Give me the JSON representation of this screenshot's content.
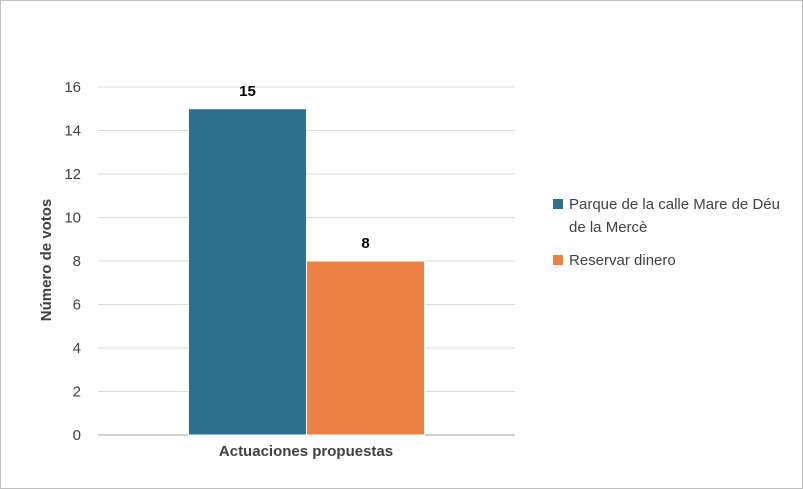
{
  "chart_data": {
    "type": "bar",
    "categories": [
      "Actuaciones propuestas"
    ],
    "series": [
      {
        "name": "Parque de la calle Mare de Déu de la Mercè",
        "values": [
          15
        ],
        "color": "#2e6f8e"
      },
      {
        "name": "Reservar dinero",
        "values": [
          8
        ],
        "color": "#ec8146"
      }
    ],
    "title": "",
    "xlabel": "Actuaciones propuestas",
    "ylabel": "Número de votos",
    "ylim": [
      0,
      16
    ],
    "yticks": [
      0,
      2,
      4,
      6,
      8,
      10,
      12,
      14,
      16
    ],
    "grid": true,
    "data_labels": true,
    "legend_position": "right"
  }
}
